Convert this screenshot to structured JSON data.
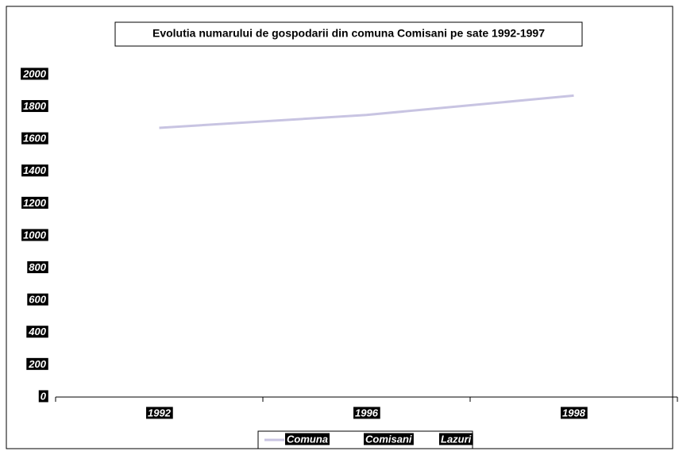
{
  "chart_data": {
    "type": "line",
    "title": "Evolutia numarului de gospodarii din comuna Comisani pe sate 1992-1997",
    "categories": [
      "1992",
      "1996",
      "1998"
    ],
    "series": [
      {
        "name": "Comuna",
        "color": "#c8c4e2",
        "values": [
          1670,
          1750,
          1870
        ]
      },
      {
        "name": "Comisani",
        "color": "#ffffff",
        "values": [
          null,
          null,
          null
        ]
      },
      {
        "name": "Lazuri",
        "color": "#ffffff",
        "values": [
          null,
          null,
          null
        ]
      }
    ],
    "ylim": [
      0,
      2000
    ],
    "yticks": [
      0,
      200,
      400,
      600,
      800,
      1000,
      1200,
      1400,
      1600,
      1800,
      2000
    ],
    "legend": "bottom"
  }
}
